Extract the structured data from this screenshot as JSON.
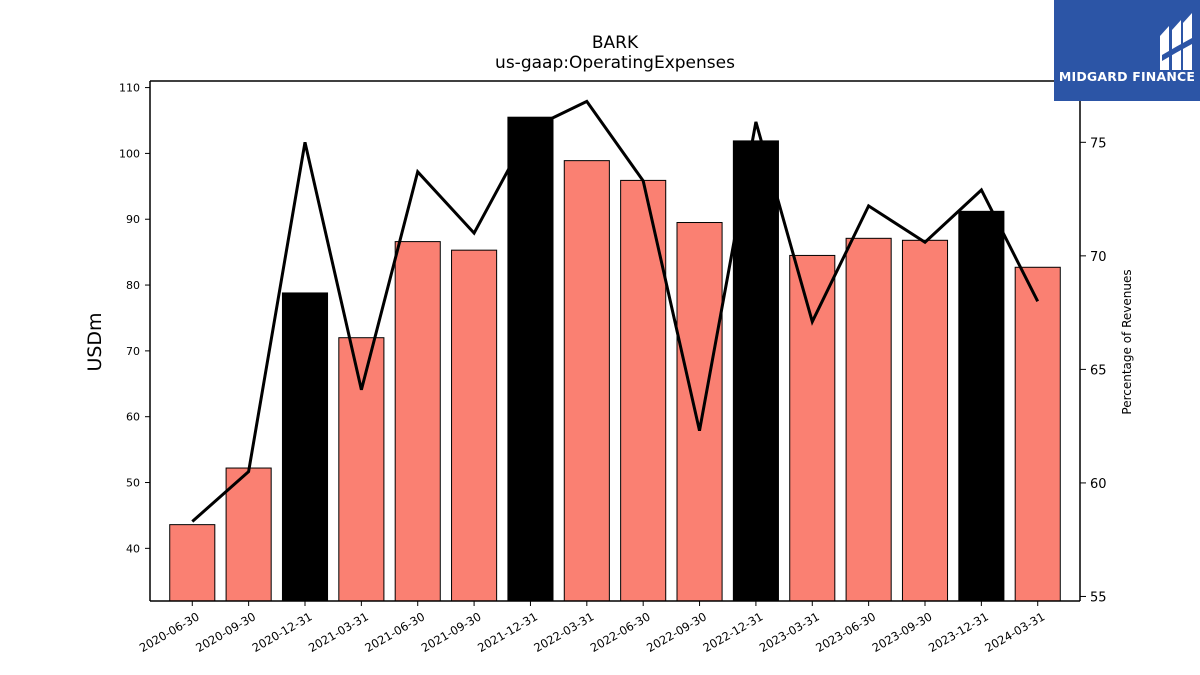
{
  "chart_data": {
    "type": "bar",
    "title": "BARK",
    "subtitle": "us-gaap:OperatingExpenses",
    "ylabel": "USDm",
    "y2label": "Percentage of Revenues",
    "categories": [
      "2020-06-30",
      "2020-09-30",
      "2020-12-31",
      "2021-03-31",
      "2021-06-30",
      "2021-09-30",
      "2021-12-31",
      "2022-03-31",
      "2022-06-30",
      "2022-09-30",
      "2022-12-31",
      "2023-03-31",
      "2023-06-30",
      "2023-09-30",
      "2023-12-31",
      "2024-03-31"
    ],
    "series": [
      {
        "values": [
          43.6,
          52.2,
          78.8,
          72.0,
          86.6,
          85.3,
          105.5,
          98.9,
          95.9,
          89.5,
          101.9,
          84.5,
          87.1,
          86.8,
          91.2,
          82.7
        ]
      },
      {
        "type": "line",
        "axis": "right",
        "values": [
          58.3,
          60.5,
          75.0,
          64.1,
          73.7,
          71.0,
          75.6,
          76.8,
          73.3,
          62.3,
          75.9,
          67.1,
          72.2,
          70.6,
          72.9,
          68.0
        ]
      }
    ],
    "bar_colors": [
      "#fa8072",
      "#fa8072",
      "#000000",
      "#fa8072",
      "#fa8072",
      "#fa8072",
      "#000000",
      "#fa8072",
      "#fa8072",
      "#fa8072",
      "#000000",
      "#fa8072",
      "#fa8072",
      "#fa8072",
      "#000000",
      "#fa8072"
    ],
    "line_color": "#000000",
    "ylim": [
      32,
      111
    ],
    "yticks": [
      40,
      50,
      60,
      70,
      80,
      90,
      100,
      110
    ],
    "y2lim": [
      54.8,
      77.7
    ],
    "y2ticks": [
      55,
      60,
      65,
      70,
      75
    ],
    "grid": false
  },
  "logo": {
    "text": "MIDGARD FINANCE",
    "color": "#2c55a6"
  }
}
